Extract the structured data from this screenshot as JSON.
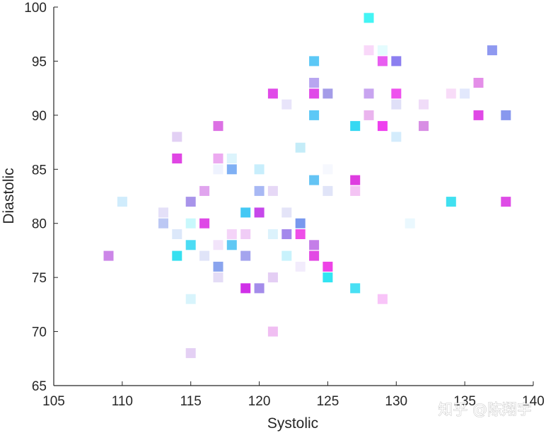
{
  "chart_data": {
    "type": "scatter",
    "xlabel": "Systolic",
    "ylabel": "Diastolic",
    "xlim": [
      105,
      140
    ],
    "ylim": [
      65,
      100
    ],
    "xticks": [
      "105",
      "110",
      "115",
      "120",
      "125",
      "130",
      "135",
      "140"
    ],
    "yticks": [
      "65",
      "70",
      "75",
      "80",
      "85",
      "90",
      "95",
      "100"
    ],
    "grid": false,
    "marker": "square",
    "points": [
      {
        "x": 128,
        "y": 99,
        "color": "#44f4f4"
      },
      {
        "x": 128,
        "y": 96,
        "color": "#f9d8f9"
      },
      {
        "x": 129,
        "y": 96,
        "color": "#e4fcfe"
      },
      {
        "x": 137,
        "y": 96,
        "color": "#8f99f0"
      },
      {
        "x": 124,
        "y": 95,
        "color": "#5cc8f6"
      },
      {
        "x": 129,
        "y": 95,
        "color": "#e85ef0"
      },
      {
        "x": 130,
        "y": 95,
        "color": "#8c7ff0"
      },
      {
        "x": 124,
        "y": 93,
        "color": "#b8a6f0"
      },
      {
        "x": 136,
        "y": 93,
        "color": "#e48ee8"
      },
      {
        "x": 121,
        "y": 92,
        "color": "#e04ae8"
      },
      {
        "x": 124,
        "y": 92,
        "color": "#e04ae8"
      },
      {
        "x": 125,
        "y": 92,
        "color": "#a49ce8"
      },
      {
        "x": 128,
        "y": 92,
        "color": "#c8a4f0"
      },
      {
        "x": 130,
        "y": 92,
        "color": "#ee52ee"
      },
      {
        "x": 134,
        "y": 92,
        "color": "#f8dcf8"
      },
      {
        "x": 135,
        "y": 92,
        "color": "#e2e8fc"
      },
      {
        "x": 122,
        "y": 91,
        "color": "#e8e4fa"
      },
      {
        "x": 130,
        "y": 91,
        "color": "#e0e0f8"
      },
      {
        "x": 132,
        "y": 91,
        "color": "#f0dcf8"
      },
      {
        "x": 124,
        "y": 90,
        "color": "#5cc8f6"
      },
      {
        "x": 128,
        "y": 90,
        "color": "#eab4ee"
      },
      {
        "x": 136,
        "y": 90,
        "color": "#e048e6"
      },
      {
        "x": 138,
        "y": 90,
        "color": "#8898ee"
      },
      {
        "x": 117,
        "y": 89,
        "color": "#dc70e4"
      },
      {
        "x": 127,
        "y": 89,
        "color": "#36d8f2"
      },
      {
        "x": 129,
        "y": 89,
        "color": "#ee40ee"
      },
      {
        "x": 132,
        "y": 89,
        "color": "#d88ee4"
      },
      {
        "x": 114,
        "y": 88,
        "color": "#e2d0f4"
      },
      {
        "x": 130,
        "y": 88,
        "color": "#d4ecfc"
      },
      {
        "x": 123,
        "y": 87,
        "color": "#c4ecf8"
      },
      {
        "x": 114,
        "y": 86,
        "color": "#e046e4"
      },
      {
        "x": 117,
        "y": 86,
        "color": "#ecaaf0"
      },
      {
        "x": 118,
        "y": 86,
        "color": "#dcf4fc"
      },
      {
        "x": 117,
        "y": 85,
        "color": "#eef2fe"
      },
      {
        "x": 118,
        "y": 85,
        "color": "#7fb0f4"
      },
      {
        "x": 120,
        "y": 85,
        "color": "#c8eefc"
      },
      {
        "x": 125,
        "y": 85,
        "color": "#f6f8fe"
      },
      {
        "x": 124,
        "y": 84,
        "color": "#64c4f4"
      },
      {
        "x": 127,
        "y": 84,
        "color": "#de3ce0"
      },
      {
        "x": 116,
        "y": 83,
        "color": "#e0a4ee"
      },
      {
        "x": 120,
        "y": 83,
        "color": "#a8b8f4"
      },
      {
        "x": 121,
        "y": 83,
        "color": "#e6d8f6"
      },
      {
        "x": 125,
        "y": 83,
        "color": "#e0e4f8"
      },
      {
        "x": 127,
        "y": 83,
        "color": "#f4c4f4"
      },
      {
        "x": 110,
        "y": 82,
        "color": "#d0ecfc"
      },
      {
        "x": 115,
        "y": 82,
        "color": "#a894ea"
      },
      {
        "x": 134,
        "y": 82,
        "color": "#40e0f0"
      },
      {
        "x": 138,
        "y": 82,
        "color": "#de4ce6"
      },
      {
        "x": 113,
        "y": 81,
        "color": "#e4e0f8"
      },
      {
        "x": 119,
        "y": 81,
        "color": "#44c8f4"
      },
      {
        "x": 120,
        "y": 81,
        "color": "#c648ea"
      },
      {
        "x": 122,
        "y": 81,
        "color": "#e4e4f8"
      },
      {
        "x": 113,
        "y": 80,
        "color": "#bcc8f4"
      },
      {
        "x": 115,
        "y": 80,
        "color": "#c8f8fc"
      },
      {
        "x": 116,
        "y": 80,
        "color": "#de48e6"
      },
      {
        "x": 123,
        "y": 80,
        "color": "#7898ee"
      },
      {
        "x": 131,
        "y": 80,
        "color": "#eaf8fe"
      },
      {
        "x": 114,
        "y": 79,
        "color": "#dce8fa"
      },
      {
        "x": 118,
        "y": 79,
        "color": "#f4d4f8"
      },
      {
        "x": 119,
        "y": 79,
        "color": "#f0ccf6"
      },
      {
        "x": 121,
        "y": 79,
        "color": "#dcf2fc"
      },
      {
        "x": 122,
        "y": 79,
        "color": "#a488ec"
      },
      {
        "x": 123,
        "y": 79,
        "color": "#ee4ee8"
      },
      {
        "x": 115,
        "y": 78,
        "color": "#4cdcf4"
      },
      {
        "x": 117,
        "y": 78,
        "color": "#f2e4fa"
      },
      {
        "x": 118,
        "y": 78,
        "color": "#60c8f4"
      },
      {
        "x": 124,
        "y": 78,
        "color": "#c47ee8"
      },
      {
        "x": 109,
        "y": 77,
        "color": "#cc86e8"
      },
      {
        "x": 114,
        "y": 77,
        "color": "#36e0f0"
      },
      {
        "x": 116,
        "y": 77,
        "color": "#e0e4f8"
      },
      {
        "x": 119,
        "y": 77,
        "color": "#a4a4ee"
      },
      {
        "x": 122,
        "y": 77,
        "color": "#c8f2fc"
      },
      {
        "x": 124,
        "y": 77,
        "color": "#e24ae4"
      },
      {
        "x": 117,
        "y": 76,
        "color": "#8aa4ee"
      },
      {
        "x": 123,
        "y": 76,
        "color": "#f2ecfc"
      },
      {
        "x": 125,
        "y": 76,
        "color": "#ee42e6"
      },
      {
        "x": 117,
        "y": 75,
        "color": "#e4dcf6"
      },
      {
        "x": 121,
        "y": 75,
        "color": "#e4cef4"
      },
      {
        "x": 125,
        "y": 75,
        "color": "#32e4f2"
      },
      {
        "x": 119,
        "y": 74,
        "color": "#d030e8"
      },
      {
        "x": 120,
        "y": 74,
        "color": "#a48cea"
      },
      {
        "x": 127,
        "y": 74,
        "color": "#48e0f4"
      },
      {
        "x": 115,
        "y": 73,
        "color": "#d8f4fc"
      },
      {
        "x": 129,
        "y": 73,
        "color": "#f8c4f8"
      },
      {
        "x": 121,
        "y": 70,
        "color": "#f0bef2"
      },
      {
        "x": 115,
        "y": 68,
        "color": "#e4d0f4"
      }
    ]
  },
  "watermark": {
    "text": "知乎 @陈翔宇"
  }
}
